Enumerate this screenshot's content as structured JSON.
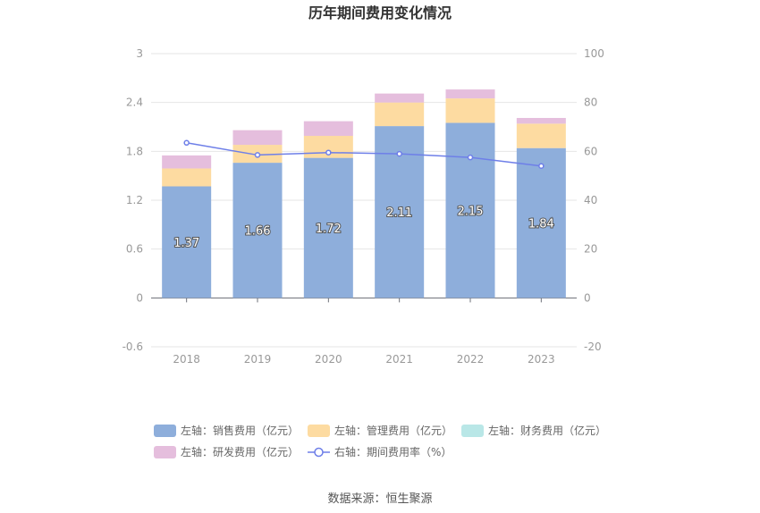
{
  "chart_data": {
    "type": "bar",
    "title": "历年期间费用变化情况",
    "categories": [
      "2018",
      "2019",
      "2020",
      "2021",
      "2022",
      "2023"
    ],
    "left_axis": {
      "ylim": [
        -0.6,
        3
      ],
      "ticks": [
        "3",
        "2.4",
        "1.8",
        "1.2",
        "0.6",
        "0",
        "-0.6"
      ],
      "tick_values": [
        3,
        2.4,
        1.8,
        1.2,
        0.6,
        0,
        -0.6
      ]
    },
    "right_axis": {
      "ylim": [
        -20,
        100
      ],
      "ticks": [
        "100",
        "80",
        "60",
        "40",
        "20",
        "0",
        "-20"
      ],
      "tick_values": [
        100,
        80,
        60,
        40,
        20,
        0,
        -20
      ]
    },
    "series": [
      {
        "name": "左轴：销售费用（亿元）",
        "axis": "left",
        "kind": "stacked-bar",
        "color": "#8eaedb",
        "values": [
          1.37,
          1.66,
          1.72,
          2.11,
          2.15,
          1.84
        ],
        "labels": [
          "1.37",
          "1.66",
          "1.72",
          "2.11",
          "2.15",
          "1.84"
        ]
      },
      {
        "name": "左轴：管理费用（亿元）",
        "axis": "left",
        "kind": "stacked-bar",
        "color": "#fddba1",
        "values": [
          0.22,
          0.22,
          0.27,
          0.29,
          0.3,
          0.3
        ]
      },
      {
        "name": "左轴：财务费用（亿元）",
        "axis": "left",
        "kind": "stacked-bar",
        "color": "#b9e7e7",
        "values": [
          0.0,
          0.0,
          0.0,
          0.0,
          0.0,
          0.0
        ]
      },
      {
        "name": "左轴：研发费用（亿元）",
        "axis": "left",
        "kind": "stacked-bar",
        "color": "#e5bedd",
        "values": [
          0.16,
          0.18,
          0.18,
          0.11,
          0.11,
          0.07
        ]
      },
      {
        "name": "右轴：期间费用率（%）",
        "axis": "right",
        "kind": "line",
        "color": "#6e7fe8",
        "values": [
          63.5,
          58.5,
          59.5,
          59.0,
          57.5,
          54.0
        ]
      }
    ],
    "legend": {
      "position": "bottom",
      "items": [
        "左轴：销售费用（亿元）",
        "左轴：管理费用（亿元）",
        "左轴：财务费用（亿元）",
        "左轴：研发费用（亿元）",
        "右轴：期间费用率（%）"
      ]
    },
    "grid": true
  },
  "source_text": "数据来源：恒生聚源"
}
